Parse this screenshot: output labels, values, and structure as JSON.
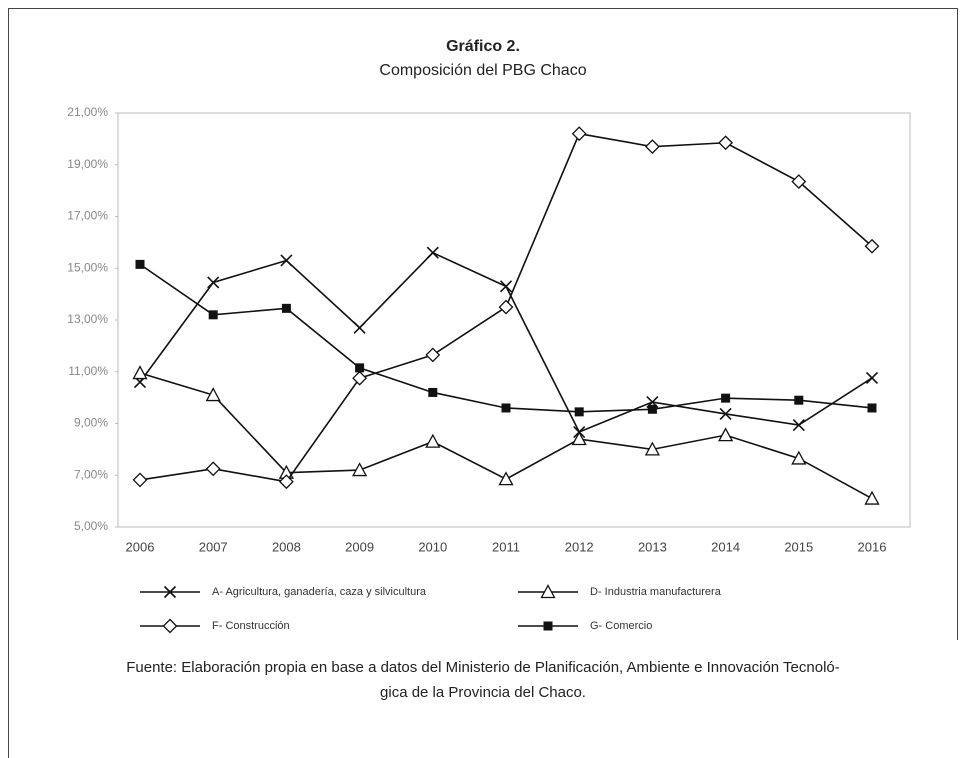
{
  "chart_data": {
    "type": "line",
    "title": "Gráfico 2.",
    "subtitle": "Composición del PBG Chaco",
    "source": "Fuente: Elaboración propia en base a datos del Ministerio de Planificación, Ambiente e Innovación Tecnoló-",
    "source_cont": "gica de la Provincia del Chaco.",
    "categories": [
      "2006",
      "2007",
      "2008",
      "2009",
      "2010",
      "2011",
      "2012",
      "2013",
      "2014",
      "2015",
      "2016"
    ],
    "series": [
      {
        "name": "A- Agricultura, ganadería, caza y silvicultura",
        "color": "#111111",
        "marker": "x",
        "values": [
          10.6,
          14.45,
          15.3,
          12.7,
          15.6,
          14.3,
          8.67,
          9.83,
          9.37,
          8.94,
          10.76
        ]
      },
      {
        "name": "D- Industria manufacturera",
        "color": "#111111",
        "marker": "triangle",
        "values": [
          10.95,
          10.1,
          7.1,
          7.2,
          8.3,
          6.85,
          8.4,
          8.0,
          8.55,
          7.65,
          6.1
        ]
      },
      {
        "name": "F- Construcción",
        "color": "#111111",
        "marker": "diamond",
        "values": [
          6.82,
          7.25,
          6.75,
          10.75,
          11.65,
          13.5,
          20.2,
          19.7,
          19.85,
          18.35,
          15.85
        ]
      },
      {
        "name": "G- Comercio",
        "color": "#111111",
        "marker": "square",
        "values": [
          15.15,
          13.2,
          13.45,
          11.15,
          10.2,
          9.6,
          9.45,
          9.55,
          9.98,
          9.9,
          9.6
        ]
      }
    ],
    "ylim": [
      5,
      21
    ],
    "yticks": [
      {
        "value": 5,
        "label": "5,00%"
      },
      {
        "value": 7,
        "label": "7,00%"
      },
      {
        "value": 9,
        "label": "9,00%"
      },
      {
        "value": 11,
        "label": "11,00%"
      },
      {
        "value": 13,
        "label": "13,00%"
      },
      {
        "value": 15,
        "label": "15,00%"
      },
      {
        "value": 17,
        "label": "17,00%"
      },
      {
        "value": 19,
        "label": "19,00%"
      },
      {
        "value": 21,
        "label": "21,00%"
      }
    ],
    "grid": false
  }
}
